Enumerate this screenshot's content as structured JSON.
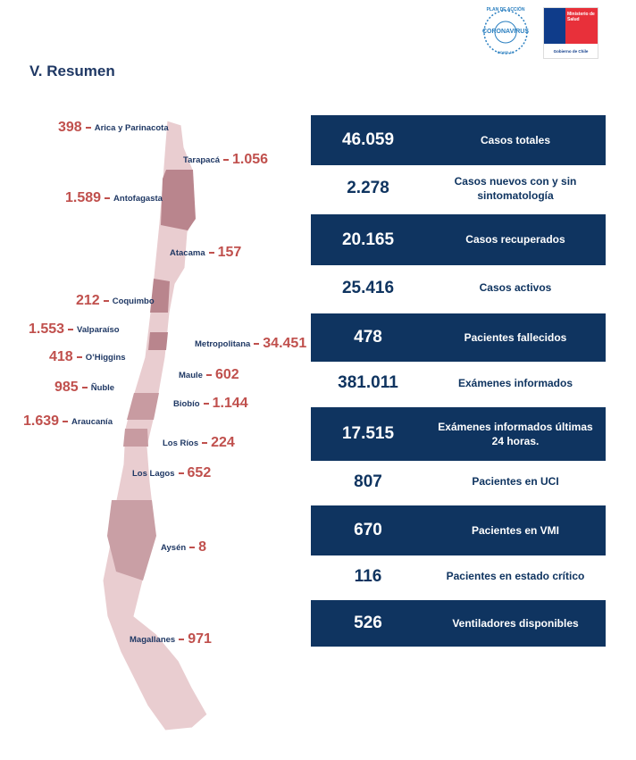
{
  "header": {
    "title": "V. Resumen",
    "logo_plan": "PLAN DE ACCIÓN",
    "logo_coronavirus": "CORONAVIRUS",
    "logo_covid": "COVID-19",
    "ministry": "Ministerio de Salud",
    "government": "Gobierno de Chile"
  },
  "regions": [
    {
      "name": "Arica y Parinacota",
      "value": "398"
    },
    {
      "name": "Tarapacá",
      "value": "1.056"
    },
    {
      "name": "Antofagasta",
      "value": "1.589"
    },
    {
      "name": "Atacama",
      "value": "157"
    },
    {
      "name": "Coquimbo",
      "value": "212"
    },
    {
      "name": "Valparaíso",
      "value": "1.553"
    },
    {
      "name": "Metropolitana",
      "value": "34.451"
    },
    {
      "name": "O’Higgins",
      "value": "418"
    },
    {
      "name": "Maule",
      "value": "602"
    },
    {
      "name": "Ñuble",
      "value": "985"
    },
    {
      "name": "Biobío",
      "value": "1.144"
    },
    {
      "name": "Araucanía",
      "value": "1.639"
    },
    {
      "name": "Los Ríos",
      "value": "224"
    },
    {
      "name": "Los Lagos",
      "value": "652"
    },
    {
      "name": "Aysén",
      "value": "8"
    },
    {
      "name": "Magallanes",
      "value": "971"
    }
  ],
  "summary": [
    {
      "value": "46.059",
      "label": "Casos totales"
    },
    {
      "value": "2.278",
      "label": "Casos nuevos con y sin sintomatología"
    },
    {
      "value": "20.165",
      "label": "Casos recuperados"
    },
    {
      "value": "25.416",
      "label": "Casos activos"
    },
    {
      "value": "478",
      "label": "Pacientes fallecidos"
    },
    {
      "value": "381.011",
      "label": "Exámenes informados"
    },
    {
      "value": "17.515",
      "label": "Exámenes informados últimas 24 horas."
    },
    {
      "value": "807",
      "label": "Pacientes en UCI"
    },
    {
      "value": "670",
      "label": "Pacientes en VMI"
    },
    {
      "value": "116",
      "label": "Pacientes en estado crítico"
    },
    {
      "value": "526",
      "label": "Ventiladores disponibles"
    }
  ]
}
